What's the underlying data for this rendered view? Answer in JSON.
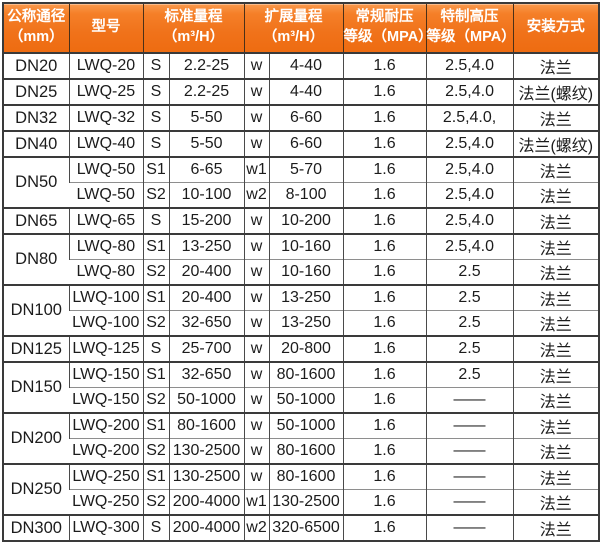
{
  "table": {
    "headers": [
      {
        "label": "公称通径\n（mm）"
      },
      {
        "label": "型号"
      },
      {
        "label": "标准量程\n（m³/H）"
      },
      {
        "label": "扩展量程\n（m³/H）"
      },
      {
        "label": "常规耐压\n等级（MPA）"
      },
      {
        "label": "特制高压\n等级（MPA）"
      },
      {
        "label": "安装方式"
      }
    ],
    "rows": [
      {
        "dn": "DN20",
        "dn_rowspan": 1,
        "group_start": true,
        "model": "LWQ-20",
        "std_code": "S",
        "std_range": "2.2-25",
        "ext_code": "w",
        "ext_range": "4-40",
        "pressure_standard": "1.6",
        "pressure_high": "2.5,4.0",
        "install": "法兰"
      },
      {
        "dn": "DN25",
        "dn_rowspan": 1,
        "group_start": true,
        "model": "LWQ-25",
        "std_code": "S",
        "std_range": "2.2-25",
        "ext_code": "w",
        "ext_range": "4-40",
        "pressure_standard": "1.6",
        "pressure_high": "2.5,4.0",
        "install": "法兰(螺纹)"
      },
      {
        "dn": "DN32",
        "dn_rowspan": 1,
        "group_start": true,
        "model": "LWQ-32",
        "std_code": "S",
        "std_range": "5-50",
        "ext_code": "w",
        "ext_range": "6-60",
        "pressure_standard": "1.6",
        "pressure_high": "2.5,4.0,",
        "install": "法兰"
      },
      {
        "dn": "DN40",
        "dn_rowspan": 1,
        "group_start": true,
        "model": "LWQ-40",
        "std_code": "S",
        "std_range": "5-50",
        "ext_code": "w",
        "ext_range": "6-60",
        "pressure_standard": "1.6",
        "pressure_high": "2.5,4.0",
        "install": "法兰(螺纹)"
      },
      {
        "dn": "DN50",
        "dn_rowspan": 2,
        "group_start": true,
        "model": "LWQ-50",
        "std_code": "S1",
        "std_range": "6-65",
        "ext_code": "w1",
        "ext_range": "5-70",
        "pressure_standard": "1.6",
        "pressure_high": "2.5,4.0",
        "install": "法兰"
      },
      {
        "dn": null,
        "dn_rowspan": 0,
        "group_start": false,
        "model": "LWQ-50",
        "std_code": "S2",
        "std_range": "10-100",
        "ext_code": "w2",
        "ext_range": "8-100",
        "pressure_standard": "1.6",
        "pressure_high": "2.5,4.0",
        "install": "法兰"
      },
      {
        "dn": "DN65",
        "dn_rowspan": 1,
        "group_start": true,
        "model": "LWQ-65",
        "std_code": "S",
        "std_range": "15-200",
        "ext_code": "w",
        "ext_range": "10-200",
        "pressure_standard": "1.6",
        "pressure_high": "2.5,4.0",
        "install": "法兰"
      },
      {
        "dn": "DN80",
        "dn_rowspan": 2,
        "group_start": true,
        "model": "LWQ-80",
        "std_code": "S1",
        "std_range": "13-250",
        "ext_code": "w",
        "ext_range": "10-160",
        "pressure_standard": "1.6",
        "pressure_high": "2.5,4.0",
        "install": "法兰"
      },
      {
        "dn": null,
        "dn_rowspan": 0,
        "group_start": false,
        "model": "LWQ-80",
        "std_code": "S2",
        "std_range": "20-400",
        "ext_code": "w",
        "ext_range": "10-160",
        "pressure_standard": "1.6",
        "pressure_high": "2.5",
        "install": "法兰"
      },
      {
        "dn": "DN100",
        "dn_rowspan": 2,
        "group_start": true,
        "model": "LWQ-100",
        "std_code": "S1",
        "std_range": "20-400",
        "ext_code": "w",
        "ext_range": "13-250",
        "pressure_standard": "1.6",
        "pressure_high": "2.5",
        "install": "法兰"
      },
      {
        "dn": null,
        "dn_rowspan": 0,
        "group_start": false,
        "model": "LWQ-100",
        "std_code": "S2",
        "std_range": "32-650",
        "ext_code": "w",
        "ext_range": "13-250",
        "pressure_standard": "1.6",
        "pressure_high": "2.5",
        "install": "法兰"
      },
      {
        "dn": "DN125",
        "dn_rowspan": 1,
        "group_start": true,
        "model": "LWQ-125",
        "std_code": "S",
        "std_range": "25-700",
        "ext_code": "w",
        "ext_range": "20-800",
        "pressure_standard": "1.6",
        "pressure_high": "2.5",
        "install": "法兰"
      },
      {
        "dn": "DN150",
        "dn_rowspan": 2,
        "group_start": true,
        "model": "LWQ-150",
        "std_code": "S1",
        "std_range": "32-650",
        "ext_code": "w",
        "ext_range": "80-1600",
        "pressure_standard": "1.6",
        "pressure_high": "2.5",
        "install": "法兰"
      },
      {
        "dn": null,
        "dn_rowspan": 0,
        "group_start": false,
        "model": "LWQ-150",
        "std_code": "S2",
        "std_range": "50-1000",
        "ext_code": "w",
        "ext_range": "50-1000",
        "pressure_standard": "1.6",
        "pressure_high": "——",
        "install": "法兰"
      },
      {
        "dn": "DN200",
        "dn_rowspan": 2,
        "group_start": true,
        "model": "LWQ-200",
        "std_code": "S1",
        "std_range": "80-1600",
        "ext_code": "w",
        "ext_range": "50-1000",
        "pressure_standard": "1.6",
        "pressure_high": "——",
        "install": "法兰"
      },
      {
        "dn": null,
        "dn_rowspan": 0,
        "group_start": false,
        "model": "LWQ-200",
        "std_code": "S2",
        "std_range": "130-2500",
        "ext_code": "w",
        "ext_range": "80-1600",
        "pressure_standard": "1.6",
        "pressure_high": "——",
        "install": "法兰"
      },
      {
        "dn": "DN250",
        "dn_rowspan": 2,
        "group_start": true,
        "model": "LWQ-250",
        "std_code": "S1",
        "std_range": "130-2500",
        "ext_code": "w",
        "ext_range": "80-1600",
        "pressure_standard": "1.6",
        "pressure_high": "——",
        "install": "法兰"
      },
      {
        "dn": null,
        "dn_rowspan": 0,
        "group_start": false,
        "model": "LWQ-250",
        "std_code": "S2",
        "std_range": "200-4000",
        "ext_code": "w1",
        "ext_range": "130-2500",
        "pressure_standard": "1.6",
        "pressure_high": "——",
        "install": "法兰"
      },
      {
        "dn": "DN300",
        "dn_rowspan": 1,
        "group_start": true,
        "model": "LWQ-300",
        "std_code": "S",
        "std_range": "200-4000",
        "ext_code": "w2",
        "ext_range": "320-6500",
        "pressure_standard": "1.6",
        "pressure_high": "——",
        "install": "法兰"
      }
    ]
  },
  "colors": {
    "header_orange_top": "#fa9a4d",
    "header_orange_bottom": "#ee6c11",
    "header_text": "#ffffff",
    "border_dark": "#3a3a3a",
    "border_light": "#8e8e8e",
    "body_text": "#1c1c1c"
  }
}
